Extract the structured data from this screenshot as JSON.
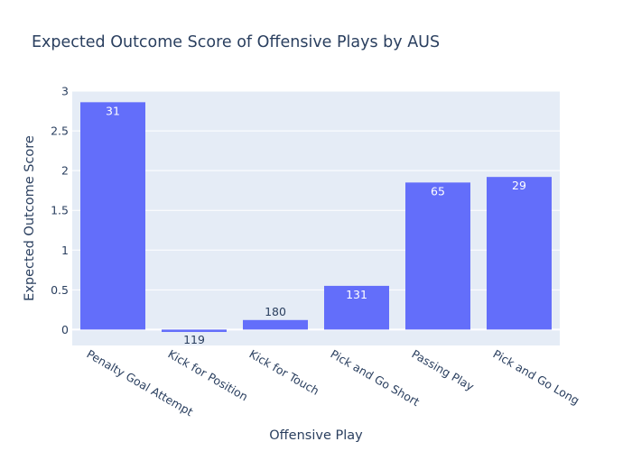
{
  "chart_data": {
    "type": "bar",
    "title": "Expected Outcome Score of Offensive Plays by AUS",
    "xlabel": "Offensive Play",
    "ylabel": "Expected Outcome Score",
    "categories": [
      "Penalty Goal Attempt",
      "Kick for Position",
      "Kick for Touch",
      "Pick and Go Short",
      "Passing Play",
      "Pick and Go Long"
    ],
    "values": [
      2.86,
      -0.03,
      0.12,
      0.55,
      1.85,
      1.92
    ],
    "bar_labels": [
      "31",
      "119",
      "180",
      "131",
      "65",
      "29"
    ],
    "ylim": [
      -0.2,
      3
    ],
    "yticks": [
      0,
      0.5,
      1,
      1.5,
      2,
      2.5,
      3
    ],
    "ytick_labels": [
      "0",
      "0.5",
      "1",
      "1.5",
      "2",
      "2.5",
      "3"
    ],
    "grid": true,
    "colors": {
      "bar": "#636efa",
      "plot_bg": "#e5ecf6",
      "text": "#2a3f5f",
      "grid": "#ffffff"
    }
  }
}
